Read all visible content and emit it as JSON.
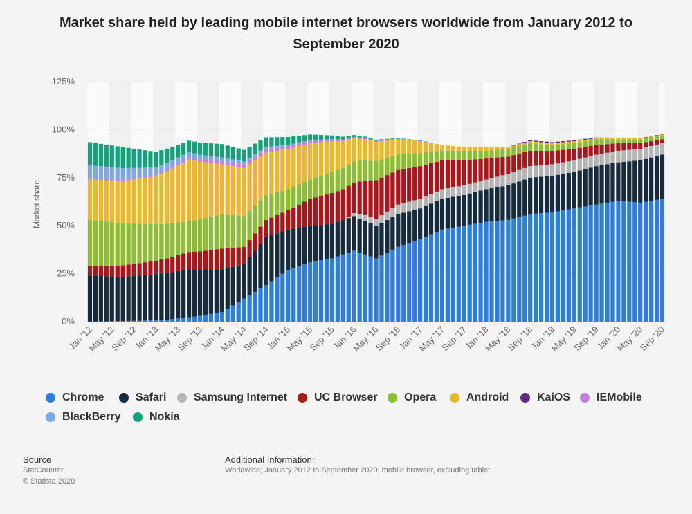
{
  "chart_data": {
    "type": "bar",
    "stacked": true,
    "title": "Market share held by leading mobile internet browsers worldwide from January 2012 to September 2020",
    "ylabel": "Market share",
    "xlabel": "",
    "ylim": [
      0,
      125
    ],
    "yticks": [
      "0%",
      "25%",
      "50%",
      "75%",
      "100%",
      "125%"
    ],
    "ytick_values": [
      0,
      25,
      50,
      75,
      100,
      125
    ],
    "xtick_labels": [
      "Jan '12",
      "May '12",
      "Sep '12",
      "Jan '13",
      "May '13",
      "Sep '13",
      "Jan '14",
      "May '14",
      "Sep '14",
      "Jan '15",
      "May '15",
      "Sep '15",
      "Jan '16",
      "May '16",
      "Sep '16",
      "Jan '17",
      "May '17",
      "Sep '17",
      "Jan '18",
      "May '18",
      "Sep '18",
      "Jan '19",
      "May '19",
      "Sep '19",
      "Jan '20",
      "May '20",
      "Sep '20"
    ],
    "months": 105,
    "series": [
      {
        "name": "Chrome",
        "color": "#2f7ed8",
        "anchors": [
          [
            0,
            0
          ],
          [
            9,
            0.5
          ],
          [
            14,
            1
          ],
          [
            20,
            3
          ],
          [
            24,
            5
          ],
          [
            28,
            12
          ],
          [
            32,
            19
          ],
          [
            36,
            27
          ],
          [
            40,
            31
          ],
          [
            44,
            33
          ],
          [
            48,
            37
          ],
          [
            52,
            33
          ],
          [
            56,
            39
          ],
          [
            60,
            43
          ],
          [
            64,
            48
          ],
          [
            68,
            50
          ],
          [
            72,
            52
          ],
          [
            76,
            53
          ],
          [
            80,
            56
          ],
          [
            84,
            57
          ],
          [
            88,
            59
          ],
          [
            92,
            61
          ],
          [
            96,
            63
          ],
          [
            100,
            62
          ],
          [
            104,
            64
          ]
        ]
      },
      {
        "name": "Safari",
        "color": "#162b3e",
        "anchors": [
          [
            0,
            24
          ],
          [
            6,
            23
          ],
          [
            12,
            24
          ],
          [
            18,
            25
          ],
          [
            24,
            22
          ],
          [
            28,
            18
          ],
          [
            32,
            25
          ],
          [
            36,
            21
          ],
          [
            40,
            19
          ],
          [
            44,
            18
          ],
          [
            48,
            18
          ],
          [
            52,
            17
          ],
          [
            56,
            17
          ],
          [
            60,
            16
          ],
          [
            64,
            16
          ],
          [
            68,
            16
          ],
          [
            72,
            17
          ],
          [
            76,
            18
          ],
          [
            80,
            19
          ],
          [
            84,
            19
          ],
          [
            88,
            19
          ],
          [
            92,
            20
          ],
          [
            96,
            20
          ],
          [
            100,
            22
          ],
          [
            104,
            23
          ]
        ]
      },
      {
        "name": "Samsung Internet",
        "color": "#b5b5b5",
        "anchors": [
          [
            0,
            0
          ],
          [
            46,
            0
          ],
          [
            50,
            3
          ],
          [
            56,
            5
          ],
          [
            60,
            5
          ],
          [
            64,
            5
          ],
          [
            68,
            5
          ],
          [
            72,
            5
          ],
          [
            76,
            6
          ],
          [
            80,
            6
          ],
          [
            84,
            6
          ],
          [
            88,
            6
          ],
          [
            92,
            6
          ],
          [
            96,
            6
          ],
          [
            100,
            6
          ],
          [
            104,
            6
          ]
        ]
      },
      {
        "name": "UC Browser",
        "color": "#a8171b",
        "anchors": [
          [
            0,
            5
          ],
          [
            6,
            6
          ],
          [
            12,
            7
          ],
          [
            18,
            9
          ],
          [
            24,
            11
          ],
          [
            28,
            9
          ],
          [
            32,
            9
          ],
          [
            36,
            10
          ],
          [
            40,
            14
          ],
          [
            44,
            16
          ],
          [
            48,
            16
          ],
          [
            52,
            20
          ],
          [
            56,
            18
          ],
          [
            60,
            17
          ],
          [
            64,
            15
          ],
          [
            68,
            13
          ],
          [
            72,
            11
          ],
          [
            76,
            9
          ],
          [
            80,
            8
          ],
          [
            84,
            7
          ],
          [
            88,
            6
          ],
          [
            92,
            5
          ],
          [
            96,
            4
          ],
          [
            100,
            3
          ],
          [
            104,
            2
          ]
        ]
      },
      {
        "name": "Opera",
        "color": "#8dbd30",
        "anchors": [
          [
            0,
            24
          ],
          [
            6,
            22
          ],
          [
            12,
            19
          ],
          [
            18,
            16
          ],
          [
            24,
            18
          ],
          [
            28,
            16
          ],
          [
            32,
            13
          ],
          [
            36,
            11
          ],
          [
            40,
            10
          ],
          [
            44,
            11
          ],
          [
            48,
            11
          ],
          [
            52,
            10
          ],
          [
            56,
            8
          ],
          [
            60,
            7
          ],
          [
            64,
            5
          ],
          [
            68,
            5
          ],
          [
            72,
            4
          ],
          [
            76,
            4
          ],
          [
            80,
            4
          ],
          [
            84,
            3
          ],
          [
            88,
            3
          ],
          [
            92,
            3
          ],
          [
            96,
            2
          ],
          [
            100,
            2
          ],
          [
            104,
            2
          ]
        ]
      },
      {
        "name": "Android",
        "color": "#eab72d",
        "anchors": [
          [
            0,
            21
          ],
          [
            6,
            22
          ],
          [
            12,
            25
          ],
          [
            18,
            32
          ],
          [
            24,
            26
          ],
          [
            28,
            25
          ],
          [
            32,
            22
          ],
          [
            36,
            21
          ],
          [
            40,
            19
          ],
          [
            44,
            16
          ],
          [
            48,
            12
          ],
          [
            52,
            10
          ],
          [
            56,
            8
          ],
          [
            60,
            6
          ],
          [
            64,
            3
          ],
          [
            68,
            2
          ],
          [
            72,
            2
          ],
          [
            76,
            1
          ],
          [
            80,
            1
          ],
          [
            84,
            1
          ],
          [
            88,
            1
          ],
          [
            92,
            0.5
          ],
          [
            96,
            0.5
          ],
          [
            100,
            0.5
          ],
          [
            104,
            0.5
          ]
        ]
      },
      {
        "name": "KaiOS",
        "color": "#5b2a7d",
        "anchors": [
          [
            0,
            0
          ],
          [
            76,
            0
          ],
          [
            80,
            0.5
          ],
          [
            84,
            0.5
          ],
          [
            88,
            0.5
          ],
          [
            92,
            0.4
          ],
          [
            96,
            0.3
          ],
          [
            100,
            0.2
          ],
          [
            104,
            0.2
          ]
        ]
      },
      {
        "name": "IEMobile",
        "color": "#c37fe0",
        "anchors": [
          [
            0,
            0.5
          ],
          [
            12,
            0.7
          ],
          [
            20,
            1
          ],
          [
            24,
            1.5
          ],
          [
            28,
            2
          ],
          [
            32,
            2
          ],
          [
            36,
            1.5
          ],
          [
            40,
            1
          ],
          [
            44,
            0.7
          ],
          [
            48,
            0.5
          ],
          [
            52,
            0.5
          ],
          [
            56,
            0.3
          ],
          [
            60,
            0.2
          ],
          [
            64,
            0
          ],
          [
            104,
            0
          ]
        ]
      },
      {
        "name": "BlackBerry",
        "color": "#7ea8e2",
        "anchors": [
          [
            0,
            7
          ],
          [
            6,
            6
          ],
          [
            12,
            4
          ],
          [
            18,
            3
          ],
          [
            24,
            2
          ],
          [
            28,
            1.5
          ],
          [
            32,
            1
          ],
          [
            36,
            0.7
          ],
          [
            40,
            0.5
          ],
          [
            44,
            0.3
          ],
          [
            48,
            0.2
          ],
          [
            52,
            0.1
          ],
          [
            56,
            0
          ],
          [
            104,
            0
          ]
        ]
      },
      {
        "name": "Nokia",
        "color": "#13a27c",
        "anchors": [
          [
            0,
            12
          ],
          [
            6,
            11
          ],
          [
            12,
            8
          ],
          [
            18,
            6
          ],
          [
            24,
            7
          ],
          [
            28,
            6
          ],
          [
            32,
            5
          ],
          [
            36,
            4
          ],
          [
            40,
            3
          ],
          [
            44,
            2
          ],
          [
            48,
            1
          ],
          [
            52,
            0.5
          ],
          [
            56,
            0.3
          ],
          [
            60,
            0.2
          ],
          [
            64,
            0
          ],
          [
            104,
            0
          ]
        ]
      }
    ]
  },
  "legend": {
    "items": [
      "Chrome",
      "Safari",
      "Samsung Internet",
      "UC Browser",
      "Opera",
      "Android",
      "KaiOS",
      "IEMobile",
      "BlackBerry",
      "Nokia"
    ]
  },
  "footer": {
    "source_label": "Source",
    "source_name": "StatCounter",
    "copyright": "© Statista 2020",
    "info_label": "Additional Information:",
    "info_text": "Worldwide; January 2012 to September 2020; mobile browser, excluding tablet"
  }
}
